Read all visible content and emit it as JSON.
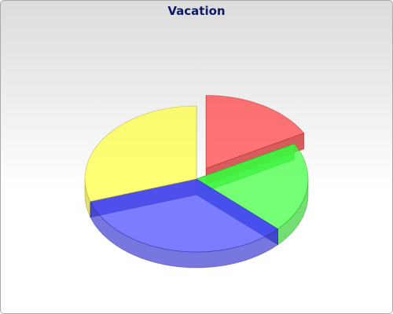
{
  "chart_data": {
    "type": "pie",
    "title": "Vacation",
    "style": "3d-exploded",
    "start_angle_deg": 90,
    "direction": "clockwise",
    "slices": [
      {
        "value": 17,
        "color": "#ff4040",
        "exploded": true
      },
      {
        "value": 20,
        "color": "#40ff40",
        "exploded": false
      },
      {
        "value": 33,
        "color": "#4a4aff",
        "exploded": false
      },
      {
        "value": 30,
        "color": "#ffff40",
        "exploded": false
      }
    ]
  }
}
